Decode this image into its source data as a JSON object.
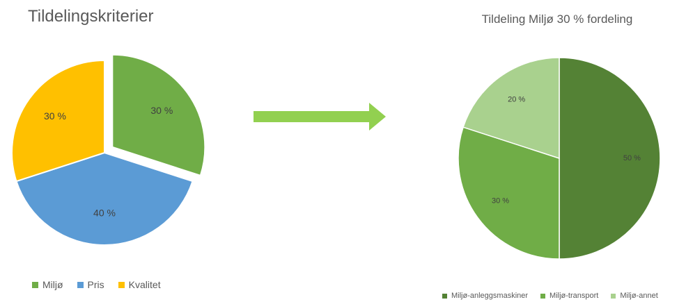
{
  "left_title": "Tildelingskriterier",
  "right_title": "Tildeling Miljø 30 % fordeling",
  "colors": {
    "miljo": "#70ad47",
    "pris": "#5b9bd5",
    "kvalitet": "#ffc000",
    "anlegg": "#548235",
    "transport": "#70ad47",
    "annet": "#a9d18e",
    "arrow": "#92d050"
  },
  "chart_data": [
    {
      "type": "pie",
      "title": "Tildelingskriterier",
      "exploded": true,
      "slices": [
        {
          "name": "Miljø",
          "value": 30,
          "label": "30 %",
          "color": "#70ad47"
        },
        {
          "name": "Pris",
          "value": 40,
          "label": "40 %",
          "color": "#5b9bd5"
        },
        {
          "name": "Kvalitet",
          "value": 30,
          "label": "30 %",
          "color": "#ffc000"
        }
      ],
      "legend": "bottom"
    },
    {
      "type": "pie",
      "title": "Tildeling Miljø 30 % fordeling",
      "exploded": false,
      "slices": [
        {
          "name": "Miljø-anleggsmaskiner",
          "value": 50,
          "label": "50 %",
          "color": "#548235"
        },
        {
          "name": "Miljø-transport",
          "value": 30,
          "label": "30 %",
          "color": "#70ad47"
        },
        {
          "name": "Miljø-annet",
          "value": 20,
          "label": "20 %",
          "color": "#a9d18e"
        }
      ],
      "legend": "bottom"
    }
  ]
}
